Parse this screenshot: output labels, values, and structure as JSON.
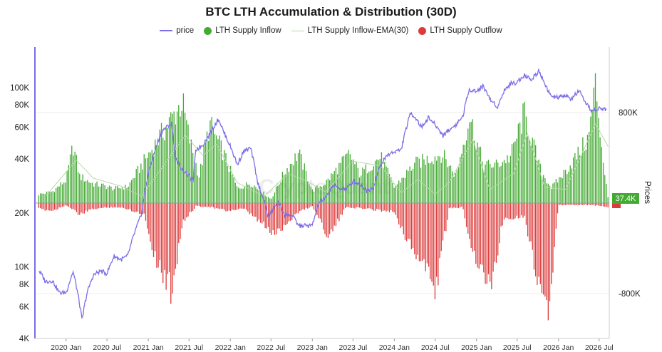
{
  "chart_data": {
    "type": "bar",
    "title": "BTC LTH Accumulation & Distribution (30D)",
    "xlabel": "",
    "ylabel_left": "",
    "ylabel_right": "Prices",
    "y_left_scale": "log",
    "y_left_ticks": [
      "4K",
      "6K",
      "8K",
      "10K",
      "20K",
      "40K",
      "60K",
      "80K",
      "100K"
    ],
    "y_left_tick_values": [
      4000,
      6000,
      8000,
      10000,
      20000,
      40000,
      60000,
      80000,
      100000
    ],
    "ylim_left": [
      4000,
      140000
    ],
    "y_right_ticks": [
      "800K",
      "-800K"
    ],
    "y_right_tick_values": [
      800000,
      -800000
    ],
    "ylim_right": [
      -1300000,
      1300000
    ],
    "x_ticks": [
      "2020 Jan",
      "2020 Jul",
      "2021 Jan",
      "2021 Jul",
      "2022 Jan",
      "2022 Jul",
      "2023 Jan",
      "2023 Jul",
      "2024 Jan",
      "2024 Jul",
      "2025 Jan",
      "2025 Jul",
      "2026 Jan",
      "2026 Jul"
    ],
    "x_tick_dates": [
      "2020-01-01",
      "2020-07-01",
      "2021-01-01",
      "2021-07-01",
      "2022-01-01",
      "2022-07-01",
      "2023-01-01",
      "2023-07-01",
      "2024-01-01",
      "2024-07-01",
      "2025-01-01",
      "2025-07-01",
      "2026-01-01",
      "2026-07-01"
    ],
    "x_range": [
      "2019-08-15",
      "2026-08-15"
    ],
    "legend_position": "top-center",
    "grid": true,
    "watermark": "CryptoQuant",
    "current_value_label": "37.4K",
    "series": [
      {
        "name": "price",
        "axis": "left",
        "color": "#7b6ee8",
        "x": [
          "2019-09-01",
          "2019-10-01",
          "2019-11-01",
          "2019-12-01",
          "2020-01-01",
          "2020-02-01",
          "2020-03-12",
          "2020-04-01",
          "2020-05-01",
          "2020-06-01",
          "2020-07-01",
          "2020-08-01",
          "2020-09-01",
          "2020-10-01",
          "2020-11-01",
          "2020-12-01",
          "2021-01-01",
          "2021-02-01",
          "2021-03-01",
          "2021-04-14",
          "2021-05-01",
          "2021-06-01",
          "2021-07-20",
          "2021-08-01",
          "2021-09-01",
          "2021-10-01",
          "2021-11-10",
          "2021-12-01",
          "2022-01-01",
          "2022-02-01",
          "2022-03-01",
          "2022-04-01",
          "2022-05-01",
          "2022-06-18",
          "2022-07-01",
          "2022-08-01",
          "2022-09-01",
          "2022-10-01",
          "2022-11-01",
          "2022-12-01",
          "2023-01-01",
          "2023-02-01",
          "2023-03-01",
          "2023-04-01",
          "2023-05-01",
          "2023-06-01",
          "2023-07-01",
          "2023-08-01",
          "2023-09-01",
          "2023-10-01",
          "2023-11-01",
          "2023-12-01",
          "2024-01-01",
          "2024-02-01",
          "2024-03-14",
          "2024-04-01",
          "2024-05-01",
          "2024-06-01",
          "2024-07-01",
          "2024-08-05",
          "2024-09-01",
          "2024-10-01",
          "2024-11-01",
          "2024-12-01",
          "2025-01-01",
          "2025-02-01",
          "2025-03-01",
          "2025-04-07",
          "2025-05-01",
          "2025-06-01",
          "2025-07-01",
          "2025-08-01",
          "2025-09-01",
          "2025-10-06",
          "2025-11-01",
          "2025-12-01",
          "2026-01-01",
          "2026-02-01",
          "2026-03-01",
          "2026-04-01",
          "2026-05-01",
          "2026-06-01",
          "2026-07-01",
          "2026-08-01"
        ],
        "values": [
          9600,
          8300,
          8400,
          7200,
          7200,
          9400,
          5000,
          7000,
          9000,
          9500,
          9200,
          11500,
          11000,
          11500,
          15500,
          19500,
          33000,
          45000,
          57000,
          63000,
          40000,
          35000,
          30000,
          45000,
          48000,
          55000,
          67000,
          57000,
          47000,
          37000,
          44000,
          46000,
          30000,
          19000,
          20000,
          23000,
          19500,
          19500,
          17000,
          17000,
          17000,
          23000,
          24000,
          28500,
          27500,
          27000,
          30000,
          29000,
          26500,
          28000,
          37000,
          42000,
          44000,
          45000,
          72000,
          69000,
          60000,
          68000,
          62000,
          54000,
          58000,
          62000,
          69000,
          98000,
          95000,
          102000,
          86000,
          78000,
          95000,
          105000,
          107000,
          118000,
          110000,
          124000,
          105000,
          88000,
          88000,
          90000,
          86000,
          96000,
          81000,
          74000,
          76000,
          76000
        ]
      },
      {
        "name": "LTH Supply Inflow",
        "axis": "right",
        "color": "#44aa33",
        "x": [
          "2019-09-01",
          "2019-11-01",
          "2020-01-01",
          "2020-02-01",
          "2020-03-01",
          "2020-05-01",
          "2020-06-15",
          "2020-08-01",
          "2020-10-01",
          "2021-06-01",
          "2021-07-01",
          "2021-08-15",
          "2021-10-01",
          "2021-12-01",
          "2022-02-01",
          "2022-04-01",
          "2022-07-01",
          "2022-09-01",
          "2022-11-01",
          "2023-01-01",
          "2023-03-01",
          "2023-06-15",
          "2023-08-01",
          "2023-11-01",
          "2024-01-01",
          "2024-04-01",
          "2024-08-01",
          "2024-10-01",
          "2024-12-01",
          "2025-02-01",
          "2025-04-01",
          "2025-06-01",
          "2025-08-01",
          "2025-10-15",
          "2025-12-01",
          "2026-02-01",
          "2026-04-01",
          "2026-05-15",
          "2026-06-15",
          "2026-07-15",
          "2026-08-10"
        ],
        "values": [
          90000,
          120000,
          240000,
          600000,
          280000,
          200000,
          180000,
          150000,
          170000,
          1050000,
          680000,
          280000,
          820000,
          520000,
          150000,
          210000,
          40000,
          330000,
          520000,
          130000,
          210000,
          510000,
          300000,
          480000,
          160000,
          410000,
          510000,
          280000,
          910000,
          390000,
          400000,
          480000,
          930000,
          330000,
          160000,
          330000,
          520000,
          680000,
          1250000,
          520000,
          37400
        ]
      },
      {
        "name": "LTH Supply Inflow-EMA(30)",
        "axis": "right",
        "color": "#b6d9a8",
        "x": [
          "2019-10-01",
          "2020-02-15",
          "2020-05-01",
          "2020-09-01",
          "2020-12-01",
          "2021-06-15",
          "2021-09-01",
          "2021-11-01",
          "2022-02-01",
          "2022-06-01",
          "2022-09-15",
          "2022-12-01",
          "2023-03-01",
          "2023-07-01",
          "2023-11-01",
          "2024-02-01",
          "2024-04-15",
          "2024-07-01",
          "2024-09-01",
          "2024-12-15",
          "2025-03-01",
          "2025-06-15",
          "2025-08-15",
          "2025-11-01",
          "2026-02-01",
          "2026-06-15",
          "2026-08-10"
        ],
        "values": [
          60000,
          380000,
          220000,
          150000,
          60000,
          600000,
          420000,
          520000,
          180000,
          60000,
          260000,
          200000,
          100000,
          370000,
          330000,
          90000,
          210000,
          80000,
          180000,
          560000,
          120000,
          260000,
          620000,
          140000,
          120000,
          700000,
          500000
        ]
      },
      {
        "name": "LTH Supply Outflow",
        "axis": "right",
        "color": "#dd3b3b",
        "x": [
          "2019-09-01",
          "2019-11-01",
          "2020-01-01",
          "2020-03-01",
          "2020-05-01",
          "2020-08-01",
          "2020-10-01",
          "2020-12-15",
          "2021-01-15",
          "2021-02-15",
          "2021-04-14",
          "2021-06-01",
          "2021-08-01",
          "2021-10-01",
          "2021-12-15",
          "2022-03-01",
          "2022-05-15",
          "2022-07-15",
          "2022-11-01",
          "2023-01-01",
          "2023-03-15",
          "2023-06-01",
          "2023-09-01",
          "2024-01-01",
          "2024-03-14",
          "2024-05-15",
          "2024-07-01",
          "2024-09-01",
          "2024-11-01",
          "2024-12-10",
          "2025-03-01",
          "2025-05-01",
          "2025-08-01",
          "2025-09-15",
          "2025-10-15",
          "2025-11-20",
          "2026-01-01",
          "2026-03-01",
          "2026-06-01",
          "2026-08-10"
        ],
        "values": [
          -60000,
          -80000,
          -20000,
          -120000,
          -60000,
          -40000,
          -60000,
          -120000,
          -430000,
          -640000,
          -910000,
          -210000,
          -30000,
          -40000,
          -80000,
          -60000,
          -200000,
          -330000,
          -90000,
          -30000,
          -350000,
          -40000,
          -60000,
          -90000,
          -460000,
          -640000,
          -920000,
          -60000,
          -40000,
          -460000,
          -900000,
          -160000,
          -130000,
          -620000,
          -900000,
          -1150000,
          -20000,
          -20000,
          -20000,
          -40000
        ]
      }
    ]
  }
}
